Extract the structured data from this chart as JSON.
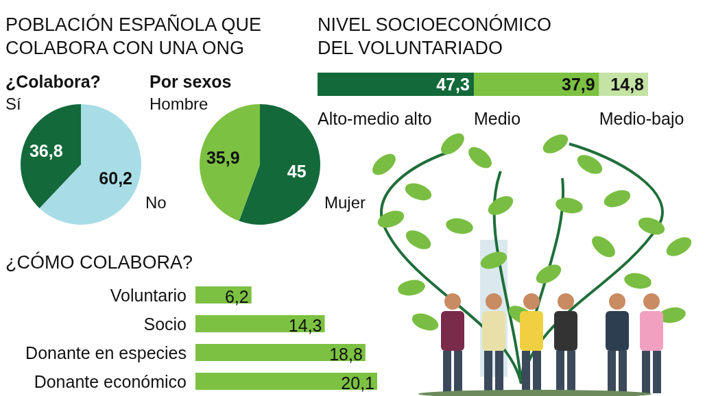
{
  "chart_data": [
    {
      "type": "pie",
      "title": "POBLACIÓN ESPAÑOLA QUE COLABORA CON UNA ONG",
      "subtitle": "¿Colabora?",
      "categories": [
        "No",
        "Sí"
      ],
      "values": [
        60.2,
        36.8
      ],
      "value_labels": [
        "60,2",
        "36,8"
      ],
      "colors": [
        "#a8dde6",
        "#13693a"
      ]
    },
    {
      "type": "pie",
      "subtitle": "Por sexos",
      "categories": [
        "Mujer",
        "Hombre"
      ],
      "values": [
        45,
        35.9
      ],
      "value_labels": [
        "45",
        "35,9"
      ],
      "colors": [
        "#13693a",
        "#7cc142"
      ]
    },
    {
      "type": "bar",
      "title": "NIVEL SOCIOECONÓMICO DEL VOLUNTARIADO",
      "orientation": "horizontal",
      "stacked": true,
      "categories": [
        null
      ],
      "series": [
        {
          "name": "Alto-medio alto",
          "color": "#13693a",
          "values": [
            47.3
          ],
          "value_labels": [
            "47,3"
          ]
        },
        {
          "name": "Medio",
          "color": "#7cc142",
          "values": [
            37.9
          ],
          "value_labels": [
            "37,9"
          ]
        },
        {
          "name": "Medio-bajo",
          "color": "#c4e3a4",
          "values": [
            14.8
          ],
          "value_labels": [
            "14,8"
          ]
        }
      ]
    },
    {
      "type": "bar",
      "title": "¿CÓMO COLABORA?",
      "orientation": "horizontal",
      "categories": [
        "Voluntario",
        "Socio",
        "Donante en especies",
        "Donante económico"
      ],
      "values": [
        6.2,
        14.3,
        18.8,
        20.1
      ],
      "value_labels": [
        "6,2",
        "14,3",
        "18,8",
        "20,1"
      ],
      "color": "#7cc142"
    }
  ]
}
